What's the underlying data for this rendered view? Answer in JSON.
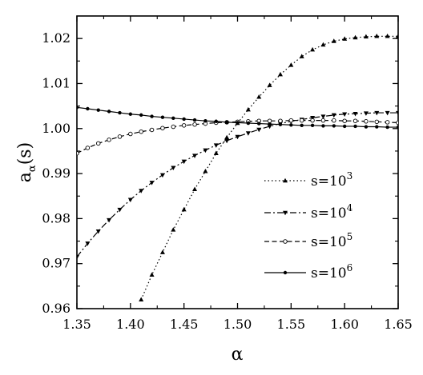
{
  "chart_data": {
    "type": "line",
    "xlabel": "α",
    "ylabel_main": "a",
    "ylabel_sub": "α",
    "ylabel_tail": "(s)",
    "xlim": [
      1.35,
      1.65
    ],
    "ylim": [
      0.96,
      1.025
    ],
    "xticks": [
      1.35,
      1.4,
      1.45,
      1.5,
      1.55,
      1.6,
      1.65
    ],
    "xtick_labels": [
      "1.35",
      "1.40",
      "1.45",
      "1.50",
      "1.55",
      "1.60",
      "1.65"
    ],
    "yticks": [
      0.96,
      0.97,
      0.98,
      0.99,
      1.0,
      1.01,
      1.02
    ],
    "ytick_labels": [
      "0.96",
      "0.97",
      "0.98",
      "0.99",
      "1.00",
      "1.01",
      "1.02"
    ],
    "grid": false,
    "legend_position": "center-right",
    "series": [
      {
        "name": "s=10",
        "name_exponent": "3",
        "line_style": "dotted",
        "marker": "triangle-up",
        "x": [
          1.41,
          1.42,
          1.43,
          1.44,
          1.45,
          1.46,
          1.47,
          1.48,
          1.49,
          1.5,
          1.51,
          1.52,
          1.53,
          1.54,
          1.55,
          1.56,
          1.57,
          1.58,
          1.59,
          1.6,
          1.61,
          1.62,
          1.63,
          1.64,
          1.65
        ],
        "y": [
          0.962,
          0.9675,
          0.9725,
          0.9775,
          0.982,
          0.9865,
          0.9905,
          0.9945,
          0.998,
          1.0012,
          1.0042,
          1.007,
          1.0096,
          1.012,
          1.0141,
          1.016,
          1.0175,
          1.0186,
          1.0194,
          1.0199,
          1.0202,
          1.0204,
          1.0205,
          1.0205,
          1.0205
        ]
      },
      {
        "name": "s=10",
        "name_exponent": "4",
        "line_style": "dash-dot",
        "marker": "triangle-down",
        "x": [
          1.35,
          1.36,
          1.37,
          1.38,
          1.39,
          1.4,
          1.41,
          1.42,
          1.43,
          1.44,
          1.45,
          1.46,
          1.47,
          1.48,
          1.49,
          1.5,
          1.51,
          1.52,
          1.53,
          1.54,
          1.55,
          1.56,
          1.57,
          1.58,
          1.59,
          1.6,
          1.61,
          1.62,
          1.63,
          1.64,
          1.65
        ],
        "y": [
          0.9715,
          0.9745,
          0.9772,
          0.9797,
          0.982,
          0.9842,
          0.9862,
          0.988,
          0.9897,
          0.9913,
          0.9927,
          0.994,
          0.9952,
          0.9963,
          0.9973,
          0.9982,
          0.999,
          0.9998,
          1.0005,
          1.0011,
          1.0016,
          1.002,
          1.0024,
          1.0027,
          1.003,
          1.0032,
          1.0033,
          1.0034,
          1.0035,
          1.0035,
          1.0035
        ]
      },
      {
        "name": "s=10",
        "name_exponent": "5",
        "line_style": "dashed",
        "marker": "open-circle",
        "x": [
          1.35,
          1.36,
          1.37,
          1.38,
          1.39,
          1.4,
          1.41,
          1.42,
          1.43,
          1.44,
          1.45,
          1.46,
          1.47,
          1.48,
          1.49,
          1.5,
          1.51,
          1.52,
          1.53,
          1.54,
          1.55,
          1.56,
          1.57,
          1.58,
          1.59,
          1.6,
          1.61,
          1.62,
          1.63,
          1.64,
          1.65
        ],
        "y": [
          0.9945,
          0.9957,
          0.9967,
          0.9975,
          0.9982,
          0.9988,
          0.9993,
          0.9997,
          1.0001,
          1.0004,
          1.0007,
          1.0009,
          1.0011,
          1.0013,
          1.0014,
          1.0015,
          1.0016,
          1.0017,
          1.0017,
          1.0017,
          1.0018,
          1.0018,
          1.0018,
          1.0018,
          1.0018,
          1.0017,
          1.0017,
          1.0016,
          1.0015,
          1.0014,
          1.0013
        ]
      },
      {
        "name": "s=10",
        "name_exponent": "6",
        "line_style": "solid",
        "marker": "filled-circle",
        "x": [
          1.35,
          1.36,
          1.37,
          1.38,
          1.39,
          1.4,
          1.41,
          1.42,
          1.43,
          1.44,
          1.45,
          1.46,
          1.47,
          1.48,
          1.49,
          1.5,
          1.51,
          1.52,
          1.53,
          1.54,
          1.55,
          1.56,
          1.57,
          1.58,
          1.59,
          1.6,
          1.61,
          1.62,
          1.63,
          1.64,
          1.65
        ],
        "y": [
          1.0047,
          1.0044,
          1.0041,
          1.0038,
          1.0035,
          1.0032,
          1.003,
          1.0027,
          1.0025,
          1.0023,
          1.0021,
          1.0019,
          1.0017,
          1.0016,
          1.0014,
          1.0013,
          1.0012,
          1.0011,
          1.001,
          1.0009,
          1.0008,
          1.0007,
          1.0007,
          1.0006,
          1.0006,
          1.0005,
          1.0005,
          1.0004,
          1.0004,
          1.0003,
          1.0003
        ]
      }
    ]
  }
}
